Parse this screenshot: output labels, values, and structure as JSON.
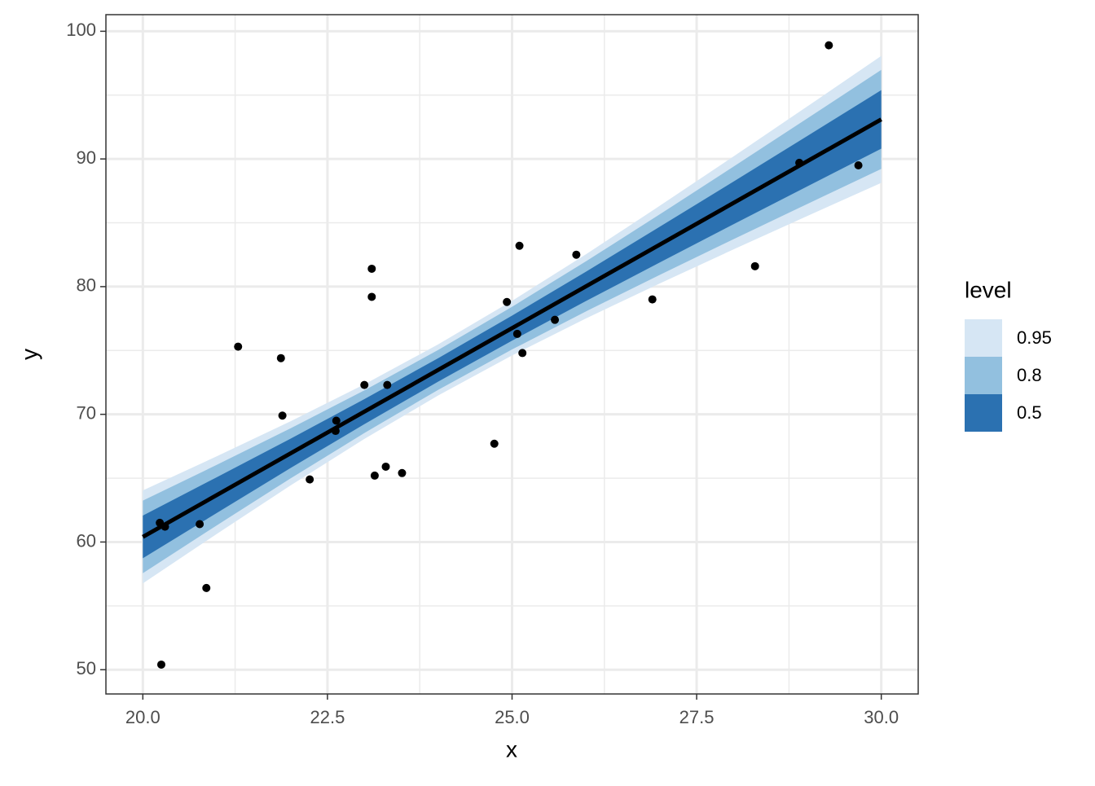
{
  "chart_data": {
    "type": "scatter",
    "x_label": "x",
    "y_label": "y",
    "xlim": [
      19.5,
      30.5
    ],
    "ylim": [
      48.1,
      101.3
    ],
    "xticks": [
      {
        "value": 20,
        "label": "20.0"
      },
      22.5,
      {
        "value": 25,
        "label": "25.0"
      },
      27.5,
      {
        "value": 30,
        "label": "30.0"
      }
    ],
    "yticks": [
      50,
      60,
      70,
      80,
      90,
      100
    ],
    "x_minor_grid": [
      21.25,
      23.75,
      26.25,
      28.75
    ],
    "y_minor_grid": [
      55,
      65,
      75,
      85,
      95
    ],
    "grid": true,
    "legend_title": "level",
    "legend_position": "right",
    "band_x": [
      20,
      21,
      22,
      23,
      24,
      25,
      26,
      27,
      28,
      29,
      30
    ],
    "ribbons": [
      {
        "name": "0.95",
        "color": "#d6e6f4",
        "lower": [
          56.76,
          60.63,
          64.43,
          68.07,
          71.48,
          74.61,
          77.51,
          80.25,
          82.92,
          85.54,
          88.13
        ],
        "upper": [
          64.04,
          66.71,
          69.45,
          72.35,
          75.48,
          78.89,
          82.53,
          86.33,
          90.2,
          94.12,
          98.07
        ]
      },
      {
        "name": "0.8",
        "color": "#92c0df",
        "lower": [
          57.56,
          61.3,
          64.98,
          68.54,
          71.92,
          75.08,
          78.06,
          80.92,
          83.72,
          86.48,
          89.22
        ],
        "upper": [
          63.24,
          66.04,
          68.9,
          71.88,
          75.04,
          78.42,
          81.98,
          85.66,
          89.4,
          93.18,
          96.98
        ]
      },
      {
        "name": "0.5",
        "color": "#2b71b1",
        "lower": [
          58.73,
          62.27,
          65.79,
          69.23,
          72.56,
          75.77,
          78.87,
          81.89,
          84.89,
          87.86,
          90.81
        ],
        "upper": [
          62.07,
          65.07,
          68.09,
          71.19,
          74.4,
          77.73,
          81.17,
          84.69,
          88.23,
          91.8,
          95.39
        ]
      }
    ],
    "fit": {
      "x": [
        20,
        30
      ],
      "values": [
        60.4,
        93.1
      ],
      "color": "#000000"
    },
    "points": {
      "color": "#000000",
      "x": [
        20.23,
        20.3,
        20.25,
        20.77,
        20.86,
        21.29,
        21.87,
        21.89,
        22.26,
        22.61,
        22.62,
        23.0,
        23.1,
        23.1,
        23.14,
        23.29,
        23.31,
        23.51,
        24.76,
        24.93,
        25.07,
        25.1,
        25.14,
        25.58,
        25.87,
        26.9,
        28.29,
        28.89,
        29.29,
        29.69
      ],
      "values": [
        61.5,
        61.2,
        50.4,
        61.4,
        56.4,
        75.3,
        74.4,
        69.9,
        64.9,
        68.7,
        69.5,
        72.3,
        81.4,
        79.2,
        65.2,
        65.9,
        72.3,
        65.4,
        67.7,
        78.8,
        76.3,
        83.2,
        74.8,
        77.4,
        82.5,
        79.0,
        81.6,
        89.7,
        98.9,
        89.5
      ]
    }
  }
}
